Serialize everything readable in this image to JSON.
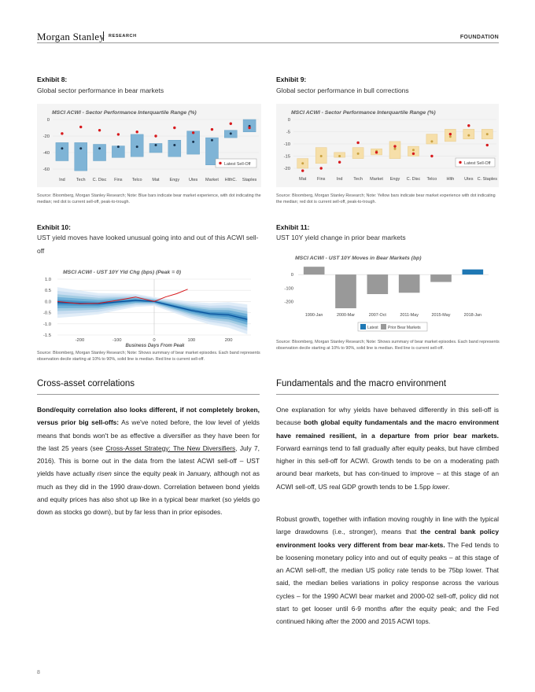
{
  "header": {
    "brand": "Morgan Stanley",
    "research": "RESEARCH",
    "section": "FOUNDATION"
  },
  "exhibits": {
    "e8": {
      "label": "Exhibit 8:",
      "subtitle": "Global sector performance in bear markets",
      "source": "Source: Bloomberg, Morgan Stanley Research; Note: Blue bars indicate bear market experience, with dot indicating the median; red dot is current sell-off, peak-to-trough."
    },
    "e9": {
      "label": "Exhibit 9:",
      "subtitle": "Global sector performance in bull corrections",
      "source": "Source: Bloomberg, Morgan Stanley Research; Note: Yellow bars indicate bear market experience with dot indicating the median; red dot is current sell-off, peak-to-trough."
    },
    "e10": {
      "label": "Exhibit 10:",
      "subtitle": "UST yield moves have looked unusual going into and out of this ACWI sell-off",
      "source": "Source: Bloomberg, Morgan Stanley Research; Note: Shows summary of bear market episodes. Each band represents observation decile starting at 10% to 90%, solid line is median. Red line is current sell-off."
    },
    "e11": {
      "label": "Exhibit 11:",
      "subtitle": "UST 10Y yield change in prior bear markets",
      "source": "Source: Bloomberg, Morgan Stanley Research; Note: Shows summary of bear market episodes. Each band represents observation decile starting at 10% to 90%, solid line is median. Red line is current sell-off."
    }
  },
  "chart_data": [
    {
      "type": "box",
      "title": "MSCI ACWI - Sector Performance Interquartile Range (%)",
      "categories": [
        "Ind",
        "Tech",
        "C. Disc",
        "Fins",
        "Telco",
        "Mat",
        "Engy",
        "Utes",
        "Market",
        "HlthC.",
        "Staples"
      ],
      "q1": [
        -50,
        -62,
        -50,
        -46,
        -45,
        -40,
        -45,
        -42,
        -55,
        -22,
        -15
      ],
      "q3": [
        -28,
        -28,
        -30,
        -32,
        -18,
        -29,
        -25,
        -14,
        -22,
        -13,
        0
      ],
      "median": [
        -35,
        -35,
        -35,
        -33,
        -33,
        -31,
        -31,
        -27,
        -25,
        -17,
        -8
      ],
      "current": [
        -17,
        -9,
        -13,
        -18,
        -15,
        -20,
        -10,
        -16,
        -12,
        -5,
        -10
      ],
      "ylim": [
        -60,
        0
      ],
      "yticks": [
        0,
        -20,
        -40,
        -60
      ],
      "legend": "Latest Sell-Off"
    },
    {
      "type": "box",
      "title": "MSCI ACWI - Sector Performance Interquartile Range (%)",
      "categories": [
        "Mat",
        "Fins",
        "Ind",
        "Tech",
        "Market",
        "Engy",
        "C. Disc",
        "Telco",
        "Hlth",
        "Utes",
        "C. Staples"
      ],
      "q1": [
        -20,
        -18,
        -15.5,
        -16,
        -14.5,
        -16,
        -15,
        -10,
        -9,
        -8,
        -8
      ],
      "q3": [
        -16,
        -11.5,
        -13.5,
        -11.5,
        -12,
        -9,
        -11,
        -6,
        -4,
        -4,
        -4
      ],
      "median": [
        -18,
        -15,
        -15,
        -14,
        -13,
        -12,
        -12.5,
        -9,
        -7,
        -6.5,
        -6
      ],
      "current": [
        -21,
        -20,
        -17.5,
        -9.5,
        -13.5,
        -11,
        -14,
        -15,
        -6,
        -2.5,
        -10.5
      ],
      "ylim": [
        -20,
        0
      ],
      "yticks": [
        0,
        -5,
        -10,
        -15,
        -20
      ],
      "legend": "Latest Sell-Off"
    },
    {
      "type": "line",
      "title": "MSCI ACWI  -  UST 10Y  Yld Chg (bps) (Peak = 0)",
      "xlabel": "Business Days From Peak",
      "xlim": [
        -260,
        260
      ],
      "ylim": [
        -1.5,
        1.0
      ],
      "xticks": [
        -200,
        -100,
        0,
        100,
        200
      ],
      "yticks": [
        "1.0",
        "0.5",
        "0.0",
        "-0.5",
        "-1.0",
        "-1.5"
      ],
      "series": [
        {
          "name": "Median",
          "x": [
            -260,
            -200,
            -150,
            -100,
            -50,
            0,
            50,
            100,
            150,
            200,
            250
          ],
          "y": [
            -0.05,
            -0.08,
            -0.1,
            -0.02,
            0.05,
            0.0,
            -0.2,
            -0.4,
            -0.55,
            -0.6,
            -0.8
          ]
        },
        {
          "name": "Current sell-off",
          "x": [
            -260,
            -200,
            -150,
            -100,
            -50,
            0,
            30,
            60,
            90
          ],
          "y": [
            0.0,
            -0.1,
            -0.08,
            0.05,
            0.2,
            0.0,
            0.2,
            0.35,
            0.55
          ]
        }
      ]
    },
    {
      "type": "bar",
      "title": "MSCI ACWI - UST 10Y Moves in Bear Markets (bp)",
      "categories": [
        "1990-Jan",
        "2000-Mar",
        "2007-Oct",
        "2011-May",
        "2015-May",
        "2018-Jan"
      ],
      "values": [
        58,
        -250,
        -145,
        -135,
        -55,
        38
      ],
      "ylim": [
        -250,
        100
      ],
      "yticks": [
        0,
        -100,
        -200
      ],
      "legend": [
        "Latest",
        "Prior Bear Markets"
      ]
    }
  ],
  "sections": {
    "left": {
      "heading": "Cross-asset correlations",
      "p1_bold": "Bond/equity correlation also looks different, if not completely broken, versus prior big sell-offs:",
      "p1_a": " As we've noted before, the low level of yields means that bonds won't be as effective a diversifier as they have been for the last 25 years (see ",
      "p1_link": "Cross-Asset Strategy: The New Diversifiers",
      "p1_b": ", July 7, 2016). This is borne out in the data from the latest ACWI sell-off – UST yields have actually ",
      "p1_em": "risen",
      "p1_c": " since the equity peak in January, although not as much as they did in the 1990 draw-down. Correlation between bond yields and equity prices has also shot up like in a typical bear market (so yields go down as stocks go down), but by far less than in prior episodes."
    },
    "right": {
      "heading": "Fundamentals and the macro environment",
      "p1_a": "One explanation for why yields have behaved differently in this sell-off is because ",
      "p1_bold": "both global equity fundamentals and the macro environment have remained resilient, in a departure from prior bear markets.",
      "p1_b": " Forward earnings tend to fall gradually after equity peaks, but have climbed higher in this sell-off for ACWI. Growth tends to be on a moderating path around bear markets, but has con-tinued to improve – at this stage of an ACWI sell-off, US real GDP growth tends to be 1.5pp ",
      "p1_em": "lower",
      "p1_c": ".",
      "p2_a": "Robust growth, together with inflation moving roughly in line with the typical large drawdowns (i.e., stronger), means that ",
      "p2_bold": "the central bank policy environment looks very different from bear mar-kets.",
      "p2_b": " The Fed tends to be loosening monetary policy into and out of equity peaks – at this stage of an ACWI sell-off, the median US policy rate tends to be 75bp lower. That said, the median belies variations in policy response across the various cycles – for the 1990 ACWI bear market and 2000-02 sell-off, policy did not start to get looser until 6-9 months ",
      "p2_em": "after",
      "p2_c": " the equity peak; and the Fed continued hiking after the 2000 and 2015 ACWI tops."
    }
  },
  "footer": {
    "page": "8"
  }
}
